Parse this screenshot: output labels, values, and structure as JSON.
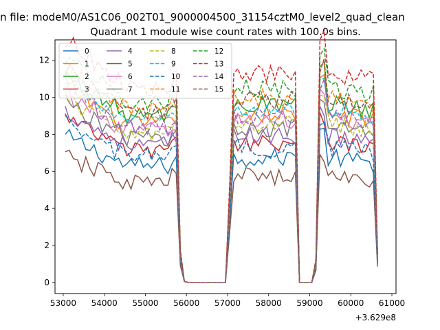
{
  "chart_data": {
    "type": "line",
    "suptitle": "n file: modeM0/AS1C06_002T01_9000004500_31154cztM0_level2_quad_clean",
    "title": "Quadrant 1 module wise count rates with 100.0s bins.",
    "x_offset_label": "+3.629e8",
    "xlim": [
      52800,
      61100
    ],
    "ylim": [
      -0.6,
      13.1
    ],
    "xticks": [
      53000,
      54000,
      55000,
      56000,
      57000,
      58000,
      59000,
      60000,
      61000
    ],
    "yticks": [
      0,
      2,
      4,
      6,
      8,
      10,
      12
    ],
    "legend_position": "upper-left",
    "legend_columns": 4,
    "x": {
      "seg1_start": 53050,
      "seg1_end": 55750,
      "seg2_start": 57150,
      "seg2_end": 58650,
      "seg3_start": 59250,
      "seg3_end": 60550,
      "step": 100
    },
    "series": [
      {
        "name": "0",
        "color": "#1f77b4",
        "dash": "solid",
        "level": 6.3
      },
      {
        "name": "1",
        "color": "#ff7f0e",
        "dash": "solid",
        "level": 8.5
      },
      {
        "name": "2",
        "color": "#2ca02c",
        "dash": "solid",
        "level": 9.0
      },
      {
        "name": "3",
        "color": "#d62728",
        "dash": "solid",
        "level": 7.1
      },
      {
        "name": "4",
        "color": "#9467bd",
        "dash": "solid",
        "level": 7.4
      },
      {
        "name": "5",
        "color": "#8c564b",
        "dash": "solid",
        "level": 5.4
      },
      {
        "name": "6",
        "color": "#e377c2",
        "dash": "solid",
        "level": 8.2
      },
      {
        "name": "7",
        "color": "#7f7f7f",
        "dash": "solid",
        "level": 7.8
      },
      {
        "name": "8",
        "color": "#bcbd22",
        "dash": "dashed",
        "level": 8.0
      },
      {
        "name": "9",
        "color": "#17becf",
        "dash": "dashed",
        "level": 8.7
      },
      {
        "name": "10",
        "color": "#1f77b4",
        "dash": "dashed",
        "level": 6.8
      },
      {
        "name": "11",
        "color": "#ff7f0e",
        "dash": "dashed",
        "level": 9.3
      },
      {
        "name": "12",
        "color": "#2ca02c",
        "dash": "dashed",
        "level": 9.8
      },
      {
        "name": "13",
        "color": "#d62728",
        "dash": "dashed",
        "level": 10.5
      },
      {
        "name": "14",
        "color": "#9467bd",
        "dash": "dashed",
        "level": 8.4
      },
      {
        "name": "15",
        "color": "#8c564b",
        "dash": "dashed",
        "level": 9.2
      }
    ]
  }
}
